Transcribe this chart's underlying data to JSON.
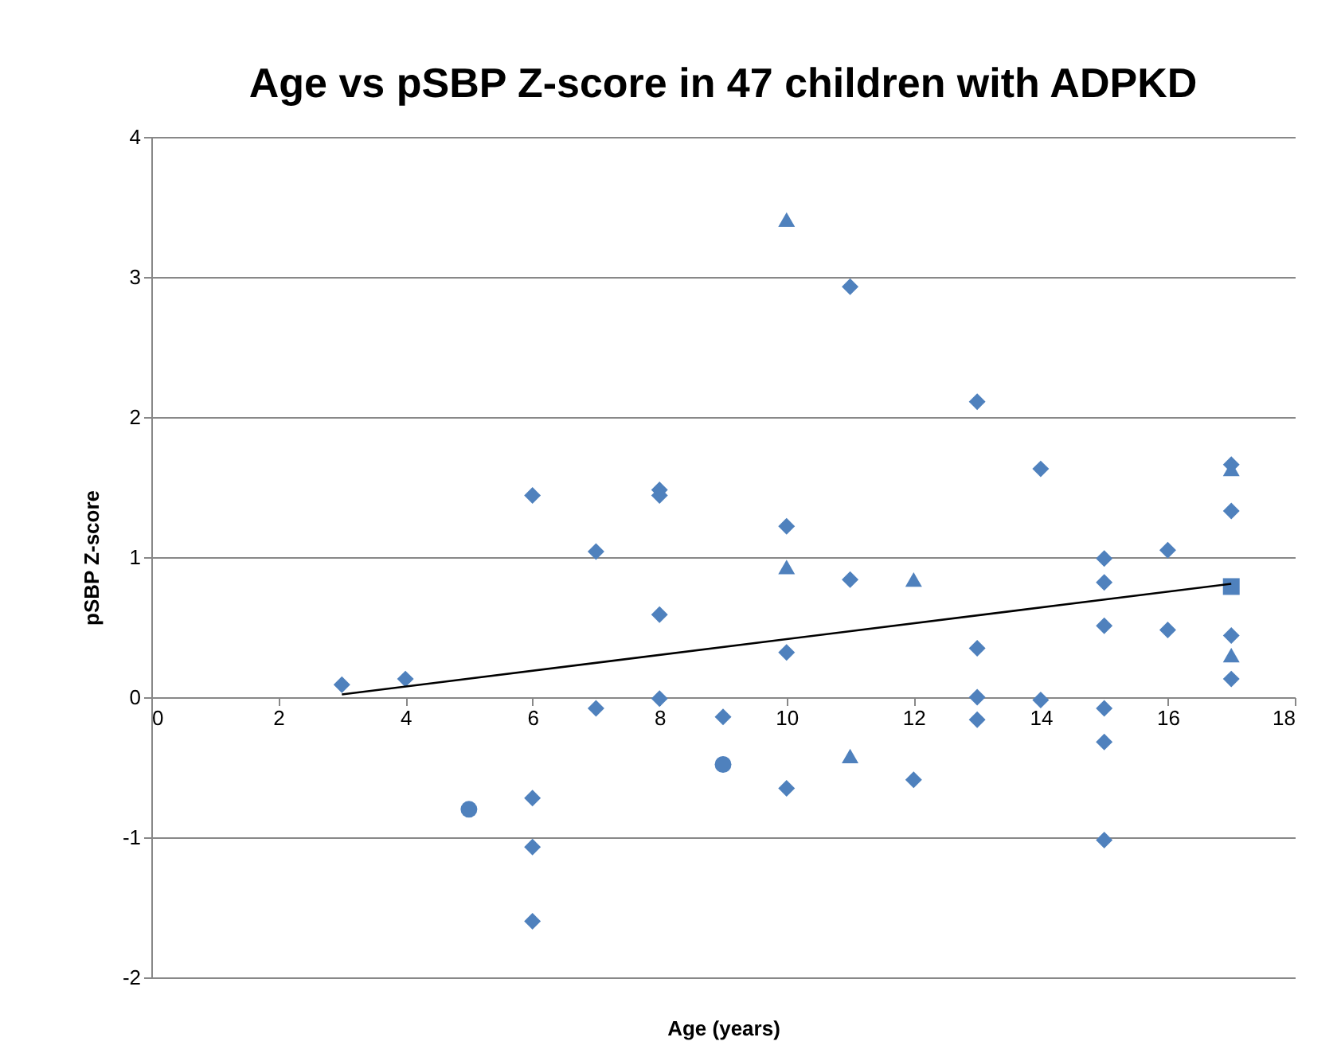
{
  "chart_data": {
    "type": "scatter",
    "title": "Age vs pSBP Z-score in 47 children with ADPKD",
    "xlabel": "Age (years)",
    "ylabel": "pSBP Z-score",
    "xlim": [
      0,
      18
    ],
    "xticks": [
      0,
      2,
      4,
      6,
      8,
      10,
      12,
      14,
      16,
      18
    ],
    "ylim": [
      -2,
      4
    ],
    "yticks": [
      -2,
      -1,
      0,
      1,
      2,
      3,
      4
    ],
    "grid": "y",
    "series": [
      {
        "marker": "diamond",
        "color": "#4f81bd",
        "x": [
          3,
          4,
          6,
          6,
          6,
          6,
          7,
          7,
          8,
          8,
          8,
          8,
          9,
          10,
          10,
          10,
          11,
          11,
          12,
          13,
          13,
          13,
          13,
          14,
          14,
          15,
          15,
          15,
          15,
          15,
          15,
          16,
          16,
          17,
          17,
          17,
          17
        ],
        "values": [
          0.09,
          0.13,
          1.44,
          -0.72,
          -1.07,
          -1.6,
          1.04,
          -0.08,
          1.48,
          1.44,
          0.59,
          -0.01,
          -0.14,
          1.22,
          0.32,
          -0.65,
          2.93,
          0.84,
          -0.59,
          2.11,
          0.35,
          0.0,
          -0.16,
          1.63,
          -0.02,
          0.99,
          0.82,
          0.51,
          -0.08,
          -0.32,
          -1.02,
          1.05,
          0.48,
          1.66,
          1.33,
          0.44,
          0.13
        ]
      },
      {
        "marker": "triangle",
        "color": "#4f81bd",
        "x": [
          10,
          10,
          11,
          12,
          17,
          17
        ],
        "values": [
          3.41,
          0.93,
          -0.42,
          0.84,
          1.63,
          0.3
        ]
      },
      {
        "marker": "circle",
        "color": "#4f81bd",
        "x": [
          5,
          9
        ],
        "values": [
          -0.8,
          -0.48
        ]
      },
      {
        "marker": "square",
        "color": "#4f81bd",
        "x": [
          17
        ],
        "values": [
          0.79
        ]
      },
      {
        "type": "line",
        "marker": "none",
        "line_style": "solid",
        "color": "#000000",
        "x": [
          3,
          17
        ],
        "values": [
          0.02,
          0.81
        ]
      }
    ]
  }
}
